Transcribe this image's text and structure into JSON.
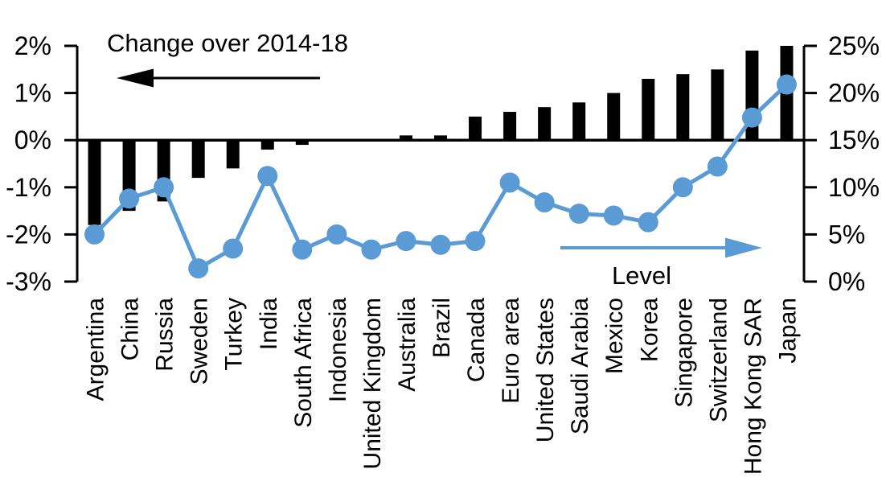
{
  "chart_data": {
    "type": "bar",
    "subtype": "dual-axis bar + line",
    "title": "",
    "categories": [
      "Argentina",
      "China",
      "Russia",
      "Sweden",
      "Turkey",
      "India",
      "South Africa",
      "Indonesia",
      "United Kingdom",
      "Australia",
      "Brazil",
      "Canada",
      "Euro area",
      "United States",
      "Saudi Arabia",
      "Mexico",
      "Korea",
      "Singapore",
      "Switzerland",
      "Hong Kong SAR",
      "Japan"
    ],
    "series": [
      {
        "name": "Change over 2014-18",
        "type": "bar",
        "axis": "left",
        "color": "#000000",
        "values": [
          -1.8,
          -1.5,
          -1.3,
          -0.8,
          -0.6,
          -0.2,
          -0.1,
          0.0,
          0.0,
          0.1,
          0.1,
          0.5,
          0.6,
          0.7,
          0.8,
          1.0,
          1.3,
          1.4,
          1.5,
          1.9,
          2.0
        ]
      },
      {
        "name": "Level",
        "type": "line",
        "axis": "right",
        "color": "#5B9BD5",
        "values": [
          5.0,
          8.8,
          10.0,
          1.4,
          3.5,
          11.2,
          3.4,
          5.0,
          3.4,
          4.3,
          3.9,
          4.3,
          10.5,
          8.4,
          7.2,
          7.0,
          6.3,
          10.0,
          12.2,
          17.4,
          20.9
        ]
      }
    ],
    "left_axis": {
      "min": -3,
      "max": 2,
      "ticks": [
        {
          "label": "2%",
          "value": 2
        },
        {
          "label": "1%",
          "value": 1
        },
        {
          "label": "0%",
          "value": 0
        },
        {
          "label": "-1%",
          "value": -1
        },
        {
          "label": "-2%",
          "value": -2
        },
        {
          "label": "-3%",
          "value": -3
        }
      ]
    },
    "right_axis": {
      "min": 0,
      "max": 25,
      "ticks": [
        {
          "label": "25%",
          "value": 25
        },
        {
          "label": "20%",
          "value": 20
        },
        {
          "label": "15%",
          "value": 15
        },
        {
          "label": "10%",
          "value": 10
        },
        {
          "label": "5%",
          "value": 5
        },
        {
          "label": "0%",
          "value": 0
        }
      ]
    },
    "annotations": {
      "left_label": "Change over 2014-18",
      "right_label": "Level",
      "left_arrow_direction": "left",
      "right_arrow_direction": "right"
    },
    "layout_hints": {
      "grid": "off",
      "zero_line": "full-width",
      "category_labels_rotation": "90deg bottom-to-top"
    }
  }
}
